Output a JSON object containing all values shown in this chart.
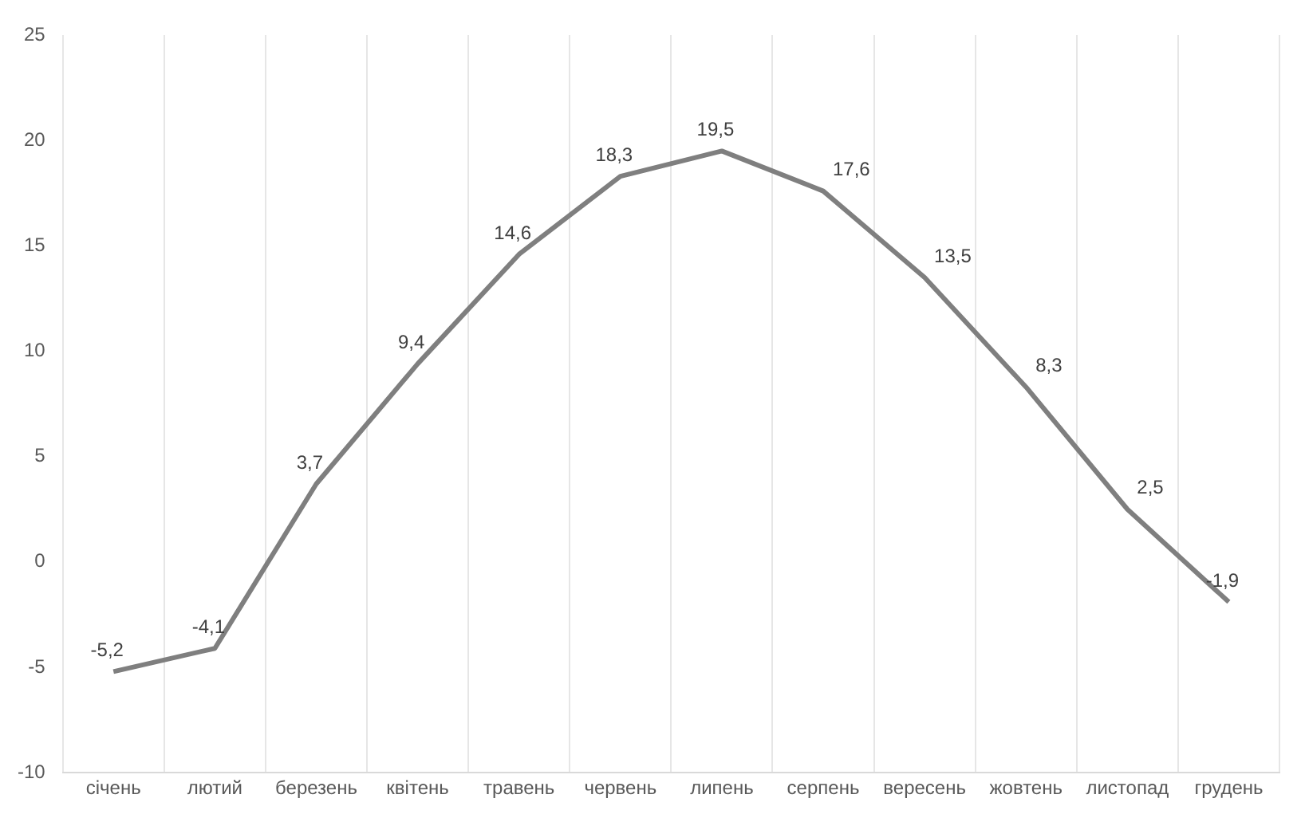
{
  "chart_data": {
    "type": "line",
    "categories": [
      "січень",
      "лютий",
      "березень",
      "квітень",
      "травень",
      "червень",
      "липень",
      "серпень",
      "вересень",
      "жовтень",
      "листопад",
      "грудень"
    ],
    "series": [
      {
        "color": "#7f7f7f",
        "values": [
          -5.2,
          -4.1,
          3.7,
          9.4,
          14.6,
          18.3,
          19.5,
          17.6,
          13.5,
          8.3,
          2.5,
          -1.9
        ],
        "value_labels": [
          "-5,2",
          "-4,1",
          "3,7",
          "9,4",
          "14,6",
          "18,3",
          "19,5",
          "17,6",
          "13,5",
          "8,3",
          "2,5",
          "-1,9"
        ]
      }
    ],
    "ylim": [
      -10,
      25
    ],
    "yticks": [
      -10,
      -5,
      0,
      5,
      10,
      15,
      20,
      25
    ],
    "grid": "x",
    "legend": false,
    "marker": "none",
    "line_style": "solid"
  }
}
